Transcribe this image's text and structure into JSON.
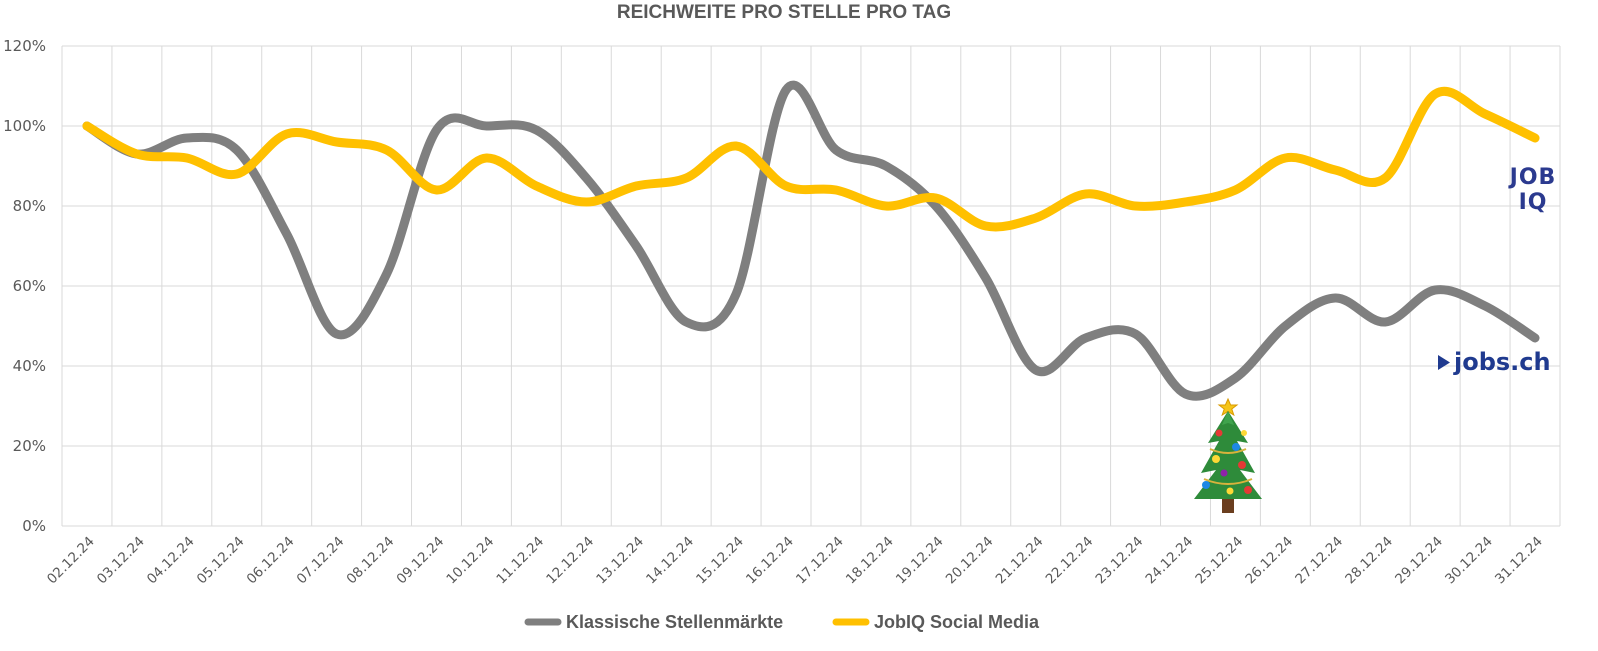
{
  "chart_data": {
    "type": "line",
    "title": "REICHWEITE PRO STELLE PRO TAG",
    "xlabel": "",
    "ylabel": "",
    "ylim": [
      0,
      120
    ],
    "y_ticks": [
      "0%",
      "20%",
      "40%",
      "60%",
      "80%",
      "100%",
      "120%"
    ],
    "y_tick_values": [
      0,
      20,
      40,
      60,
      80,
      100,
      120
    ],
    "categories": [
      "02.12.24",
      "03.12.24",
      "04.12.24",
      "05.12.24",
      "06.12.24",
      "07.12.24",
      "08.12.24",
      "09.12.24",
      "10.12.24",
      "11.12.24",
      "12.12.24",
      "13.12.24",
      "14.12.24",
      "15.12.24",
      "16.12.24",
      "17.12.24",
      "18.12.24",
      "19.12.24",
      "20.12.24",
      "21.12.24",
      "22.12.24",
      "23.12.24",
      "24.12.24",
      "25.12.24",
      "26.12.24",
      "27.12.24",
      "28.12.24",
      "29.12.24",
      "30.12.24",
      "31.12.24"
    ],
    "series": [
      {
        "name": "Klassische Stellenmärkte",
        "color": "#7f7f7f",
        "values": [
          100,
          93,
          97,
          94,
          73,
          48,
          63,
          99,
          100,
          99,
          87,
          70,
          51,
          58,
          109,
          94,
          90,
          80,
          62,
          39,
          47,
          48,
          33,
          37,
          50,
          57,
          51,
          59,
          55,
          47
        ]
      },
      {
        "name": "JobIQ Social Media",
        "color": "#ffc000",
        "values": [
          100,
          93,
          92,
          88,
          98,
          96,
          94,
          84,
          92,
          85,
          81,
          85,
          87,
          95,
          85,
          84,
          80,
          82,
          75,
          77,
          83,
          80,
          81,
          84,
          92,
          89,
          87,
          108,
          103,
          97
        ]
      }
    ],
    "grid": true,
    "legend": "bottom"
  },
  "logos": {
    "jobiq": "JOB IQ",
    "jobsch": "jobs.ch"
  },
  "decoration": {
    "tree_icon": "christmas-tree-icon"
  }
}
